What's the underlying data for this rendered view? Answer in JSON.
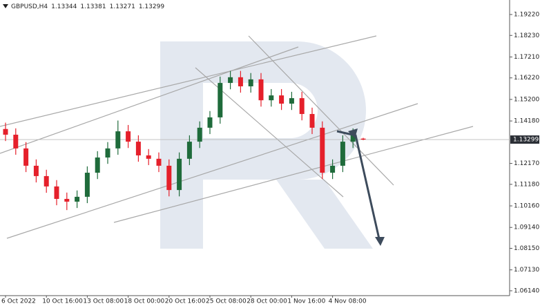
{
  "chart_data": {
    "type": "candlestick",
    "header": {
      "symbol": "GBPUSD,H4",
      "ohlc": [
        "1.13344",
        "1.13381",
        "1.13271",
        "1.13299"
      ]
    },
    "categories": [
      "6 Oct 2022",
      null,
      null,
      null,
      "10 Oct 16:00",
      null,
      null,
      null,
      "13 Oct 08:00",
      null,
      null,
      null,
      "18 Oct 00:00",
      null,
      null,
      null,
      "20 Oct 16:00",
      null,
      null,
      null,
      "25 Oct 08:00",
      null,
      null,
      null,
      "28 Oct 00:00",
      null,
      null,
      null,
      "1 Nov 16:00",
      null,
      null,
      null,
      "4 Nov 08:00",
      null,
      null,
      null
    ],
    "open": [
      1.138,
      1.1353,
      1.1288,
      1.1206,
      1.1157,
      1.1108,
      1.1049,
      1.1036,
      1.1059,
      1.1173,
      1.1245,
      1.1288,
      1.1369,
      1.132,
      1.1255,
      1.1239,
      1.1206,
      1.1091,
      1.1239,
      1.132,
      1.1386,
      1.1435,
      1.1598,
      1.1625,
      1.1582,
      1.1615,
      1.1516,
      1.1539,
      1.15,
      1.1526,
      1.1451,
      1.1386,
      1.1173,
      1.1206,
      1.132,
      1.13344
    ],
    "high": [
      1.141,
      1.1383,
      1.1318,
      1.1236,
      1.1187,
      1.1138,
      1.1079,
      1.1089,
      1.1203,
      1.1275,
      1.1318,
      1.142,
      1.1399,
      1.135,
      1.1285,
      1.1269,
      1.1236,
      1.1269,
      1.135,
      1.1416,
      1.1465,
      1.1628,
      1.1655,
      1.1655,
      1.1645,
      1.1645,
      1.1569,
      1.1569,
      1.1556,
      1.1556,
      1.1481,
      1.1416,
      1.1236,
      1.135,
      1.1383,
      1.13381
    ],
    "low": [
      1.1323,
      1.1258,
      1.1176,
      1.1127,
      1.1078,
      1.1019,
      1.0996,
      1.1006,
      1.1029,
      1.1143,
      1.1215,
      1.1258,
      1.129,
      1.1225,
      1.1209,
      1.1176,
      1.1061,
      1.1061,
      1.1209,
      1.129,
      1.1356,
      1.1405,
      1.1568,
      1.1552,
      1.1552,
      1.1486,
      1.1486,
      1.147,
      1.147,
      1.1421,
      1.1356,
      1.1143,
      1.1143,
      1.1176,
      1.129,
      1.13271
    ],
    "close": [
      1.1353,
      1.1288,
      1.1206,
      1.1157,
      1.1108,
      1.1049,
      1.1036,
      1.1059,
      1.1173,
      1.1245,
      1.1288,
      1.1369,
      1.132,
      1.1255,
      1.1239,
      1.1206,
      1.1091,
      1.1239,
      1.132,
      1.1386,
      1.1435,
      1.1598,
      1.1625,
      1.1582,
      1.1615,
      1.1516,
      1.1539,
      1.15,
      1.1526,
      1.1451,
      1.1386,
      1.1173,
      1.1206,
      1.132,
      1.1353,
      1.13299
    ],
    "up_color": "#1f6b3b",
    "down_color": "#e5202b",
    "last_price": 1.13299,
    "ylim": [
      1.0591,
      1.19907
    ],
    "yticks": [
      {
        "value": 1.1922,
        "label": "1.19220"
      },
      {
        "value": 1.1823,
        "label": "1.18230"
      },
      {
        "value": 1.1721,
        "label": "1.17210"
      },
      {
        "value": 1.1622,
        "label": "1.16220"
      },
      {
        "value": 1.152,
        "label": "1.15200"
      },
      {
        "value": 1.1418,
        "label": "1.14180"
      },
      {
        "value": 1.1217,
        "label": "1.12170"
      },
      {
        "value": 1.1118,
        "label": "1.11180"
      },
      {
        "value": 1.1016,
        "label": "1.10160"
      },
      {
        "value": 1.0914,
        "label": "1.09140"
      },
      {
        "value": 1.0815,
        "label": "1.08150"
      },
      {
        "value": 1.0713,
        "label": "1.07130"
      },
      {
        "value": 1.0614,
        "label": "1.06140"
      }
    ]
  }
}
